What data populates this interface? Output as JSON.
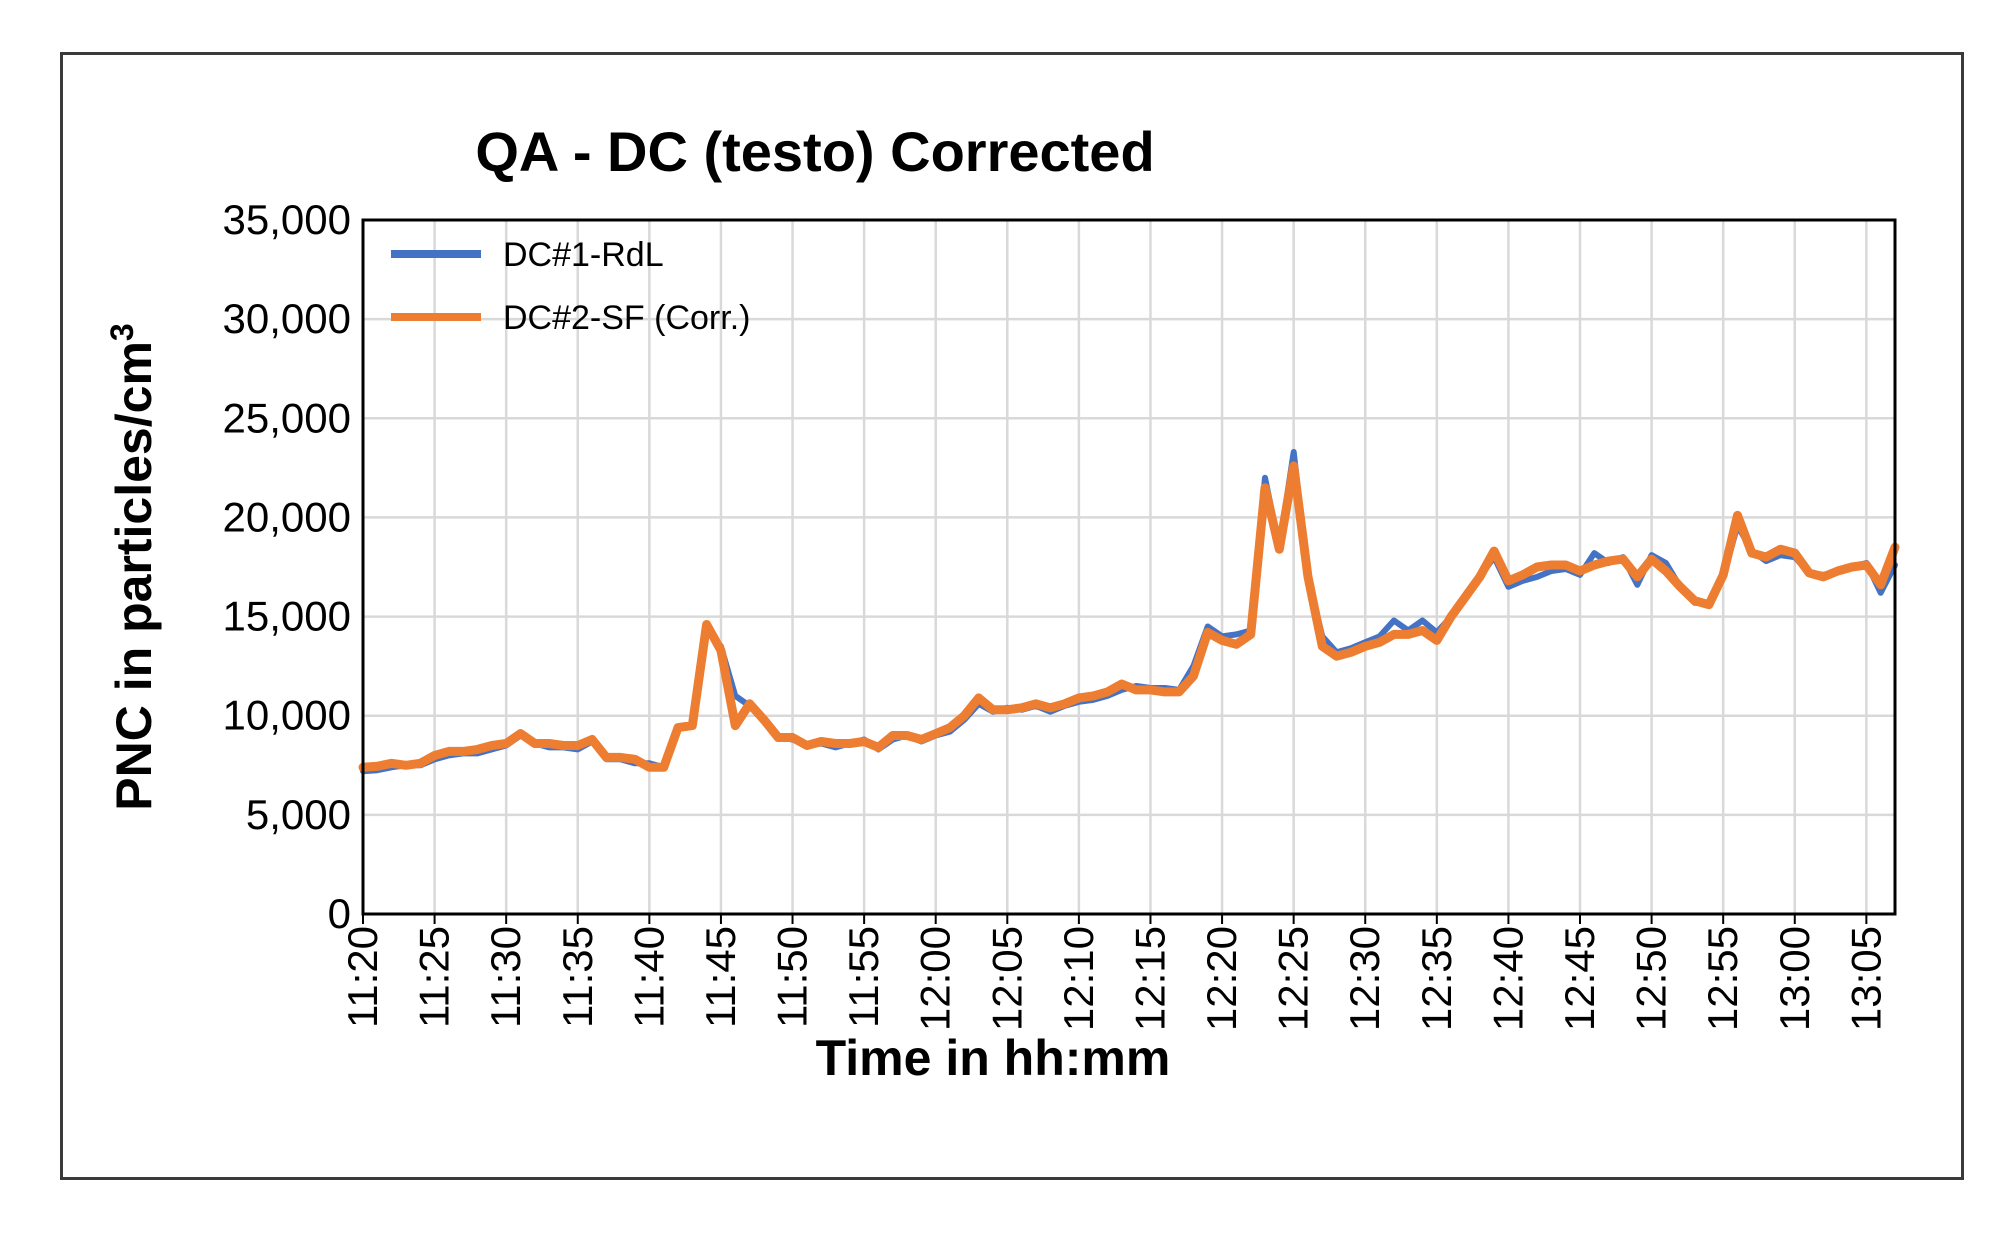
{
  "chart_data": {
    "type": "line",
    "title": "QA - DC (testo) Corrected",
    "xlabel": "Time in hh:mm",
    "ylabel": "PNC in particles/cm",
    "ylabel_sup": "3",
    "ylim": [
      0,
      35000
    ],
    "ytick_values": [
      0,
      5000,
      10000,
      15000,
      20000,
      25000,
      30000,
      35000
    ],
    "ytick_labels": [
      "0",
      "5,000",
      "10,000",
      "15,000",
      "20,000",
      "25,000",
      "30,000",
      "35,000"
    ],
    "xlim_minutes": [
      0,
      107
    ],
    "xtick_minutes": [
      0,
      5,
      10,
      15,
      20,
      25,
      30,
      35,
      40,
      45,
      50,
      55,
      60,
      65,
      70,
      75,
      80,
      85,
      90,
      95,
      100,
      105
    ],
    "xtick_labels": [
      "11:20",
      "11:25",
      "11:30",
      "11:35",
      "11:40",
      "11:45",
      "11:50",
      "11:55",
      "12:00",
      "12:05",
      "12:10",
      "12:15",
      "12:20",
      "12:25",
      "12:30",
      "12:35",
      "12:40",
      "12:45",
      "12:50",
      "12:55",
      "13:00",
      "13:05"
    ],
    "grid": true,
    "legend_position": "top-left",
    "series": [
      {
        "name": "DC#1-RdL",
        "color": "#4472C4",
        "x": [
          0,
          1,
          2,
          3,
          4,
          5,
          6,
          7,
          8,
          9,
          10,
          11,
          12,
          13,
          14,
          15,
          16,
          17,
          18,
          19,
          20,
          21,
          22,
          23,
          24,
          25,
          26,
          27,
          28,
          29,
          30,
          31,
          32,
          33,
          34,
          35,
          36,
          37,
          38,
          39,
          40,
          41,
          42,
          43,
          44,
          45,
          46,
          47,
          48,
          49,
          50,
          51,
          52,
          53,
          54,
          55,
          56,
          57,
          58,
          59,
          60,
          61,
          62,
          63,
          64,
          65,
          66,
          67,
          68,
          69,
          70,
          71,
          72,
          73,
          74,
          75,
          76,
          77,
          78,
          79,
          80,
          81,
          82,
          83,
          84,
          85,
          86,
          87,
          88,
          89,
          90,
          91,
          92,
          93,
          94,
          95,
          96,
          97,
          98,
          99,
          100,
          101,
          102,
          103,
          104,
          105,
          106,
          107
        ],
        "y": [
          7200,
          7250,
          7400,
          7500,
          7500,
          7800,
          8000,
          8100,
          8100,
          8300,
          8500,
          9000,
          8600,
          8400,
          8400,
          8300,
          8700,
          7800,
          7800,
          7600,
          7600,
          7400,
          9300,
          9600,
          14300,
          13500,
          11000,
          10500,
          9700,
          8900,
          8800,
          8500,
          8600,
          8400,
          8600,
          8800,
          8300,
          8800,
          9000,
          8700,
          9000,
          9200,
          9800,
          10600,
          10200,
          10400,
          10300,
          10500,
          10200,
          10500,
          10700,
          10800,
          11000,
          11300,
          11500,
          11400,
          11400,
          11300,
          12500,
          14500,
          14000,
          14100,
          14300,
          22000,
          18500,
          23300,
          17000,
          14000,
          13200,
          13400,
          13700,
          14000,
          14800,
          14300,
          14800,
          14200,
          15000,
          16000,
          17000,
          18000,
          16500,
          16800,
          17000,
          17300,
          17400,
          17100,
          18200,
          17700,
          18000,
          16600,
          18100,
          17700,
          16500,
          15700,
          15700,
          17000,
          19600,
          18300,
          17800,
          18100,
          18000,
          17200,
          17100,
          17300,
          17500,
          17700,
          16200,
          17600
        ]
      },
      {
        "name": "DC#2-SF (Corr.)",
        "color": "#ED7D31",
        "x": [
          0,
          1,
          2,
          3,
          4,
          5,
          6,
          7,
          8,
          9,
          10,
          11,
          12,
          13,
          14,
          15,
          16,
          17,
          18,
          19,
          20,
          21,
          22,
          23,
          24,
          25,
          26,
          27,
          28,
          29,
          30,
          31,
          32,
          33,
          34,
          35,
          36,
          37,
          38,
          39,
          40,
          41,
          42,
          43,
          44,
          45,
          46,
          47,
          48,
          49,
          50,
          51,
          52,
          53,
          54,
          55,
          56,
          57,
          58,
          59,
          60,
          61,
          62,
          63,
          64,
          65,
          66,
          67,
          68,
          69,
          70,
          71,
          72,
          73,
          74,
          75,
          76,
          77,
          78,
          79,
          80,
          81,
          82,
          83,
          84,
          85,
          86,
          87,
          88,
          89,
          90,
          91,
          92,
          93,
          94,
          95,
          96,
          97,
          98,
          99,
          100,
          101,
          102,
          103,
          104,
          105,
          106,
          107
        ],
        "y": [
          7400,
          7450,
          7600,
          7500,
          7600,
          8000,
          8200,
          8200,
          8300,
          8500,
          8600,
          9100,
          8600,
          8600,
          8500,
          8500,
          8800,
          7900,
          7900,
          7800,
          7400,
          7400,
          9400,
          9500,
          14600,
          13300,
          9500,
          10600,
          9800,
          8900,
          8900,
          8500,
          8700,
          8600,
          8600,
          8700,
          8400,
          9000,
          9000,
          8800,
          9100,
          9400,
          10000,
          10900,
          10300,
          10300,
          10400,
          10600,
          10400,
          10600,
          10900,
          11000,
          11200,
          11600,
          11300,
          11300,
          11200,
          11200,
          12000,
          14200,
          13800,
          13600,
          14100,
          21500,
          18400,
          22600,
          17000,
          13500,
          13000,
          13200,
          13500,
          13700,
          14100,
          14100,
          14300,
          13800,
          15000,
          16000,
          17000,
          18300,
          16800,
          17100,
          17500,
          17600,
          17600,
          17300,
          17600,
          17800,
          17900,
          17000,
          17900,
          17300,
          16500,
          15800,
          15600,
          17100,
          20100,
          18200,
          18000,
          18400,
          18200,
          17200,
          17000,
          17300,
          17500,
          17600,
          16600,
          18500
        ]
      }
    ]
  }
}
